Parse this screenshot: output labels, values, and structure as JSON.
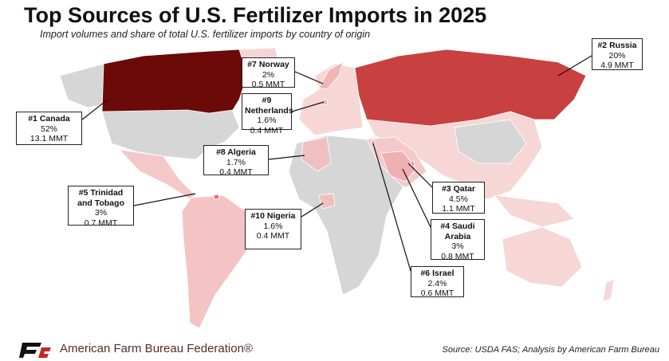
{
  "header": {
    "title": "Top Sources of U.S. Fertilizer Imports in 2025",
    "subtitle": "Import volumes and share of total U.S. fertilizer imports by country of origin"
  },
  "callouts": [
    {
      "rank": "#1",
      "country": "Canada",
      "share": "52%",
      "volume": "13.1 MMT"
    },
    {
      "rank": "#2",
      "country": "Russia",
      "share": "20%",
      "volume": "4.9 MMT"
    },
    {
      "rank": "#3",
      "country": "Qatar",
      "share": "4.5%",
      "volume": "1.1 MMT"
    },
    {
      "rank": "#4",
      "country": "Saudi Arabia",
      "share": "3%",
      "volume": "0.8 MMT"
    },
    {
      "rank": "#5",
      "country": "Trinidad and Tobago",
      "share": "3%",
      "volume": "0.7 MMT"
    },
    {
      "rank": "#6",
      "country": "Israel",
      "share": "2.4%",
      "volume": "0.6 MMT"
    },
    {
      "rank": "#7",
      "country": "Norway",
      "share": "2%",
      "volume": "0.5 MMT"
    },
    {
      "rank": "#8",
      "country": "Algeria",
      "share": "1.7%",
      "volume": "0.4 MMT"
    },
    {
      "rank": "#9",
      "country": "Netherlands",
      "share": "1.6%",
      "volume": "0.4 MMT"
    },
    {
      "rank": "#10",
      "country": "Nigeria",
      "share": "1.6%",
      "volume": "0.4 MMT"
    }
  ],
  "footer": {
    "organization": "American Farm Bureau Federation®",
    "source": "Source: USDA FAS; Analysis by American Farm Bureau"
  }
}
